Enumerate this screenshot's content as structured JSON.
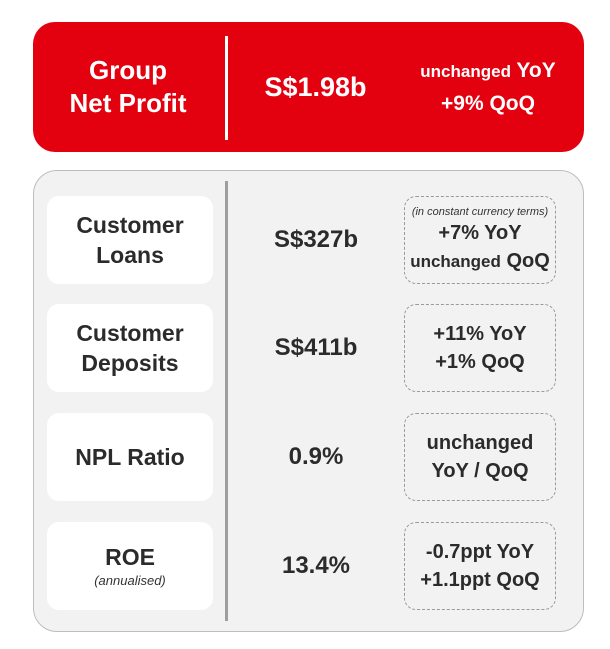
{
  "headline": {
    "title_line1": "Group",
    "title_line2": "Net Profit",
    "value": "S$1.98b",
    "yoy_word": "unchanged",
    "yoy_suffix": "YoY",
    "qoq": "+9% QoQ",
    "background_color": "#e3000f"
  },
  "metrics": [
    {
      "label_line1": "Customer",
      "label_line2": "Loans",
      "value": "S$327b",
      "note": "(in constant currency terms)",
      "change_line1": "+7% YoY",
      "change_line2_word": "unchanged",
      "change_line2_suffix": "QoQ"
    },
    {
      "label_line1": "Customer",
      "label_line2": "Deposits",
      "value": "S$411b",
      "change_line1": "+11% YoY",
      "change_line2": "+1% QoQ"
    },
    {
      "label": "NPL Ratio",
      "value": "0.9%",
      "change_line1": "unchanged",
      "change_line2": "YoY / QoQ"
    },
    {
      "label": "ROE",
      "sub_label": "(annualised)",
      "value": "13.4%",
      "change_line1": "-0.7ppt YoY",
      "change_line2": "+1.1ppt QoQ"
    }
  ]
}
